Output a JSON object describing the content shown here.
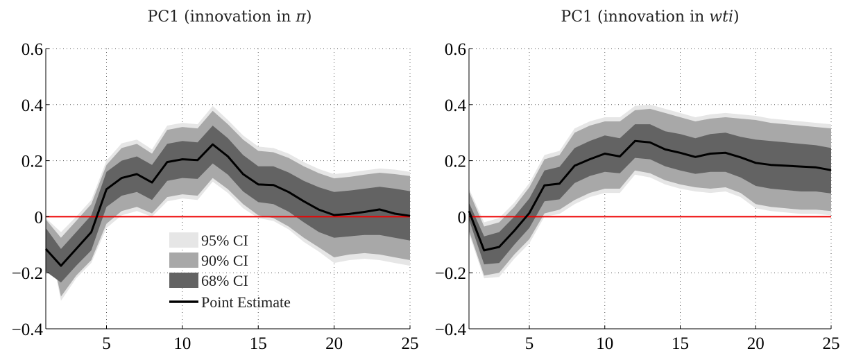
{
  "chart_data": [
    {
      "type": "area",
      "title": "PC1 (innovation in π)",
      "xlabel": "",
      "ylabel": "",
      "xlim": [
        1,
        25
      ],
      "ylim": [
        -0.4,
        0.6
      ],
      "xticks": [
        5,
        10,
        15,
        20,
        25
      ],
      "yticks": [
        -0.4,
        -0.2,
        0,
        0.2,
        0.4,
        0.6
      ],
      "ytick_labels": [
        "−0.4",
        "−0.2",
        "0",
        "0.2",
        "0.4",
        "0.6"
      ],
      "grid": true,
      "reference_line": {
        "y": 0,
        "color": "#ee0000"
      },
      "x": [
        1,
        2,
        3,
        4,
        5,
        6,
        7,
        8,
        9,
        10,
        11,
        12,
        13,
        14,
        15,
        16,
        17,
        18,
        19,
        20,
        21,
        22,
        23,
        24,
        25
      ],
      "series": [
        {
          "name": "Point Estimate",
          "values": [
            -0.115,
            -0.175,
            -0.115,
            -0.055,
            0.098,
            0.138,
            0.152,
            0.122,
            0.195,
            0.205,
            0.202,
            0.258,
            0.215,
            0.152,
            0.115,
            0.113,
            0.088,
            0.055,
            0.025,
            0.006,
            0.01,
            0.017,
            0.026,
            0.011,
            0.003
          ]
        }
      ],
      "bands": [
        {
          "name": "95% CI",
          "lower": [
            -0.03,
            -0.3,
            -0.22,
            -0.165,
            -0.04,
            0.005,
            0.02,
            0.0,
            0.055,
            0.065,
            0.06,
            0.125,
            0.085,
            0.03,
            -0.005,
            -0.015,
            -0.045,
            -0.09,
            -0.125,
            -0.165,
            -0.155,
            -0.15,
            -0.155,
            -0.165,
            -0.175
          ],
          "upper": [
            -0.005,
            -0.055,
            0.0,
            0.06,
            0.2,
            0.262,
            0.275,
            0.24,
            0.325,
            0.335,
            0.33,
            0.395,
            0.345,
            0.29,
            0.25,
            0.245,
            0.225,
            0.195,
            0.17,
            0.152,
            0.158,
            0.165,
            0.172,
            0.168,
            0.16
          ]
        },
        {
          "name": "90% CI",
          "lower": [
            -0.035,
            -0.285,
            -0.21,
            -0.155,
            -0.025,
            0.02,
            0.035,
            0.012,
            0.07,
            0.08,
            0.075,
            0.138,
            0.098,
            0.045,
            0.005,
            -0.005,
            -0.035,
            -0.075,
            -0.11,
            -0.145,
            -0.135,
            -0.13,
            -0.135,
            -0.145,
            -0.155
          ],
          "upper": [
            -0.01,
            -0.075,
            -0.015,
            0.045,
            0.185,
            0.245,
            0.26,
            0.225,
            0.31,
            0.32,
            0.315,
            0.378,
            0.33,
            0.275,
            0.235,
            0.23,
            0.21,
            0.18,
            0.155,
            0.137,
            0.142,
            0.15,
            0.157,
            0.152,
            0.145
          ]
        },
        {
          "name": "68% CI",
          "lower": [
            -0.195,
            -0.235,
            -0.175,
            -0.12,
            0.035,
            0.075,
            0.088,
            0.06,
            0.128,
            0.138,
            0.135,
            0.19,
            0.15,
            0.09,
            0.052,
            0.045,
            0.018,
            -0.02,
            -0.055,
            -0.075,
            -0.07,
            -0.065,
            -0.065,
            -0.075,
            -0.085
          ],
          "upper": [
            -0.04,
            -0.115,
            -0.055,
            0.005,
            0.16,
            0.2,
            0.215,
            0.185,
            0.26,
            0.27,
            0.265,
            0.325,
            0.28,
            0.22,
            0.18,
            0.18,
            0.158,
            0.128,
            0.105,
            0.088,
            0.093,
            0.1,
            0.107,
            0.1,
            0.091
          ]
        }
      ],
      "legend": {
        "placement": "lower-left",
        "entries": [
          "95% CI",
          "90% CI",
          "68% CI",
          "Point Estimate"
        ]
      },
      "colors": {
        "ci95": "#e6e6e6",
        "ci90": "#a8a8a8",
        "ci68": "#636363",
        "estimate": "#000000",
        "zero_line": "#ee0000"
      }
    },
    {
      "type": "area",
      "title": "PC1 (innovation in wti)",
      "xlabel": "",
      "ylabel": "",
      "xlim": [
        1,
        25
      ],
      "ylim": [
        -0.4,
        0.6
      ],
      "xticks": [
        5,
        10,
        15,
        20,
        25
      ],
      "yticks": [
        -0.4,
        -0.2,
        0,
        0.2,
        0.4,
        0.6
      ],
      "ytick_labels": [
        "−0.4",
        "−0.2",
        "0",
        "0.2",
        "0.4",
        "0.6"
      ],
      "grid": true,
      "reference_line": {
        "y": 0,
        "color": "#ee0000"
      },
      "x": [
        1,
        2,
        3,
        4,
        5,
        6,
        7,
        8,
        9,
        10,
        11,
        12,
        13,
        14,
        15,
        16,
        17,
        18,
        19,
        20,
        21,
        22,
        23,
        24,
        25
      ],
      "series": [
        {
          "name": "Point Estimate",
          "values": [
            0.02,
            -0.12,
            -0.108,
            -0.05,
            0.013,
            0.112,
            0.118,
            0.182,
            0.205,
            0.225,
            0.215,
            0.27,
            0.265,
            0.24,
            0.228,
            0.213,
            0.225,
            0.228,
            0.212,
            0.192,
            0.185,
            0.182,
            0.179,
            0.176,
            0.166
          ]
        }
      ],
      "bands": [
        {
          "name": "95% CI",
          "lower": [
            -0.06,
            -0.22,
            -0.215,
            -0.15,
            -0.095,
            0.0,
            0.01,
            0.045,
            0.07,
            0.085,
            0.085,
            0.15,
            0.14,
            0.115,
            0.1,
            0.09,
            0.085,
            0.09,
            0.07,
            0.03,
            0.02,
            0.015,
            0.01,
            0.01,
            0.005
          ],
          "upper": [
            0.1,
            -0.02,
            -0.005,
            0.05,
            0.12,
            0.22,
            0.235,
            0.315,
            0.34,
            0.355,
            0.355,
            0.395,
            0.4,
            0.385,
            0.37,
            0.355,
            0.365,
            0.37,
            0.365,
            0.36,
            0.35,
            0.345,
            0.34,
            0.335,
            0.33
          ]
        },
        {
          "name": "90% CI",
          "lower": [
            -0.05,
            -0.21,
            -0.2,
            -0.135,
            -0.08,
            0.012,
            0.025,
            0.06,
            0.085,
            0.1,
            0.1,
            0.165,
            0.155,
            0.13,
            0.115,
            0.105,
            0.1,
            0.105,
            0.085,
            0.045,
            0.035,
            0.03,
            0.025,
            0.025,
            0.02
          ],
          "upper": [
            0.09,
            -0.035,
            -0.02,
            0.035,
            0.105,
            0.205,
            0.22,
            0.3,
            0.325,
            0.34,
            0.34,
            0.38,
            0.385,
            0.37,
            0.355,
            0.34,
            0.35,
            0.355,
            0.35,
            0.345,
            0.335,
            0.33,
            0.325,
            0.32,
            0.315
          ]
        },
        {
          "name": "68% CI",
          "lower": [
            -0.01,
            -0.17,
            -0.165,
            -0.1,
            -0.04,
            0.055,
            0.062,
            0.12,
            0.145,
            0.16,
            0.155,
            0.21,
            0.205,
            0.18,
            0.165,
            0.153,
            0.16,
            0.16,
            0.14,
            0.11,
            0.1,
            0.095,
            0.09,
            0.09,
            0.083
          ],
          "upper": [
            0.05,
            -0.07,
            -0.055,
            0.0,
            0.065,
            0.165,
            0.178,
            0.245,
            0.27,
            0.29,
            0.28,
            0.33,
            0.33,
            0.305,
            0.295,
            0.28,
            0.295,
            0.3,
            0.285,
            0.275,
            0.27,
            0.265,
            0.26,
            0.255,
            0.245
          ]
        }
      ],
      "colors": {
        "ci95": "#e6e6e6",
        "ci90": "#a8a8a8",
        "ci68": "#636363",
        "estimate": "#000000",
        "zero_line": "#ee0000"
      }
    }
  ],
  "charts": [
    {
      "title_prefix": "PC1 (innovation in ",
      "title_var": "π",
      "title_suffix": ")"
    },
    {
      "title_prefix": "PC1 (innovation in ",
      "title_var": "wti",
      "title_suffix": ")"
    }
  ],
  "legend": {
    "ci95_label": "95% CI",
    "ci90_label": "90% CI",
    "ci68_label": "68% CI",
    "estimate_label": "Point Estimate"
  }
}
